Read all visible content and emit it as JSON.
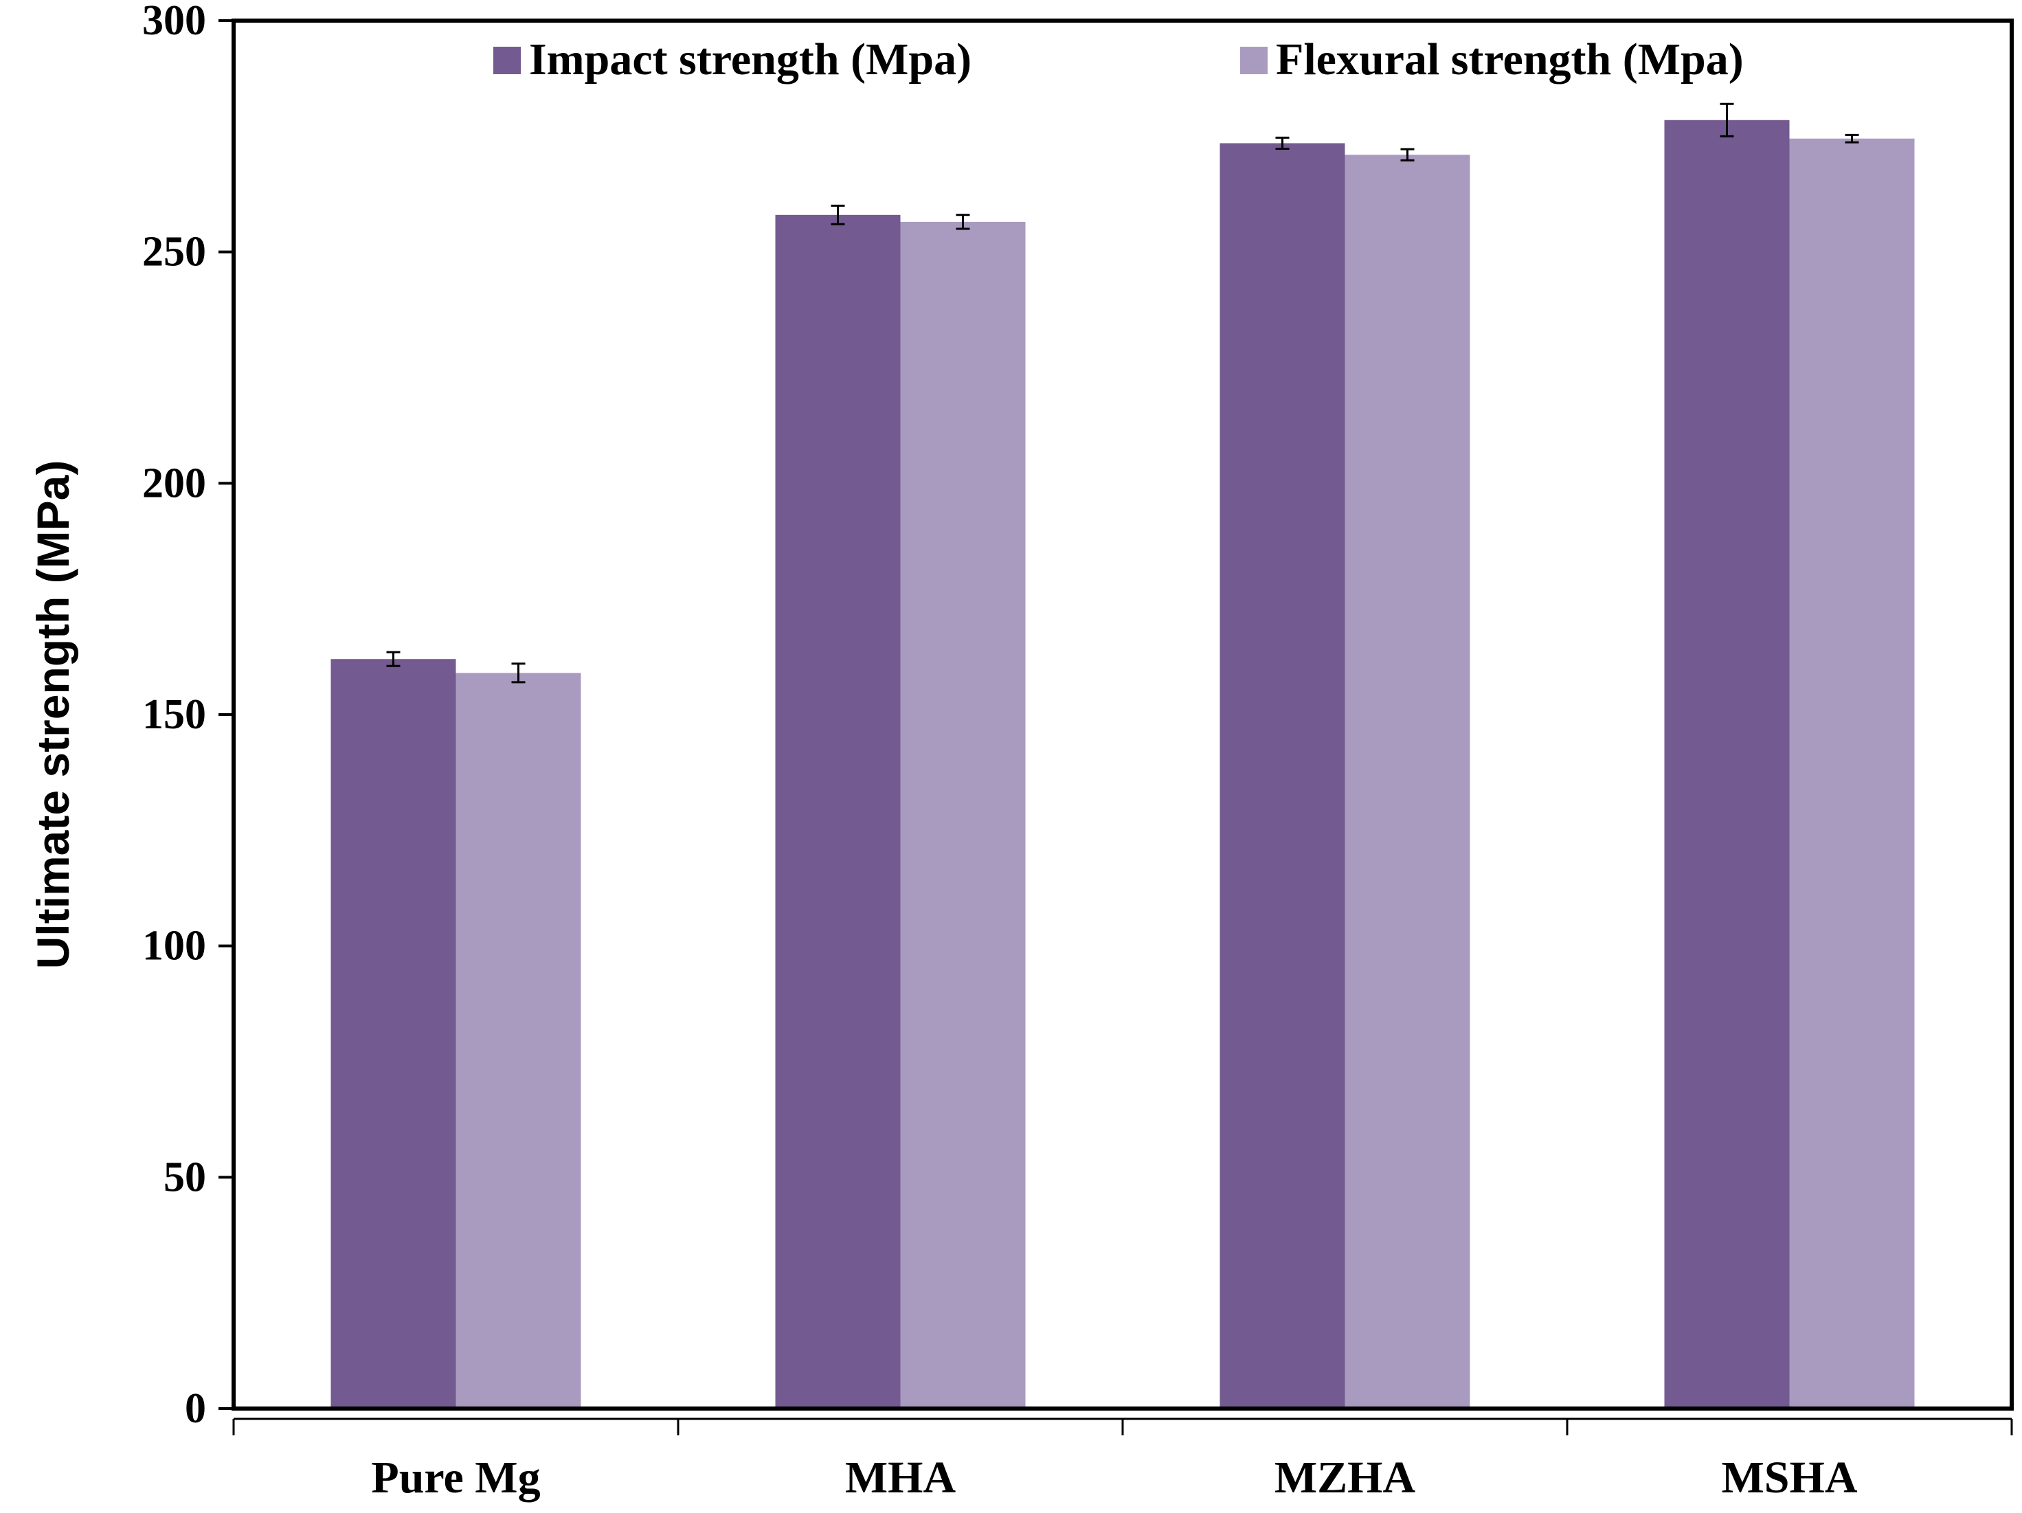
{
  "chart_data": {
    "type": "bar",
    "title": "",
    "xlabel": "",
    "ylabel": "Ultimate strength (MPa)",
    "ylim": [
      0,
      300
    ],
    "yticks": [
      0,
      50,
      100,
      150,
      200,
      250,
      300
    ],
    "categories": [
      "Pure Mg",
      "MHA",
      "MZHA",
      "MSHA"
    ],
    "series": [
      {
        "name": "Impact strength (Mpa)",
        "color": "#735a90",
        "values": [
          162,
          258,
          273.5,
          278.5
        ],
        "errors": [
          1.5,
          2.0,
          1.2,
          3.5
        ]
      },
      {
        "name": "Flexural strength (Mpa)",
        "color": "#a99bc0",
        "values": [
          159,
          256.5,
          271,
          274.5
        ],
        "errors": [
          2.0,
          1.5,
          1.2,
          0.8
        ]
      }
    ],
    "legend_position": "top",
    "grid": false,
    "error_bars": true
  }
}
